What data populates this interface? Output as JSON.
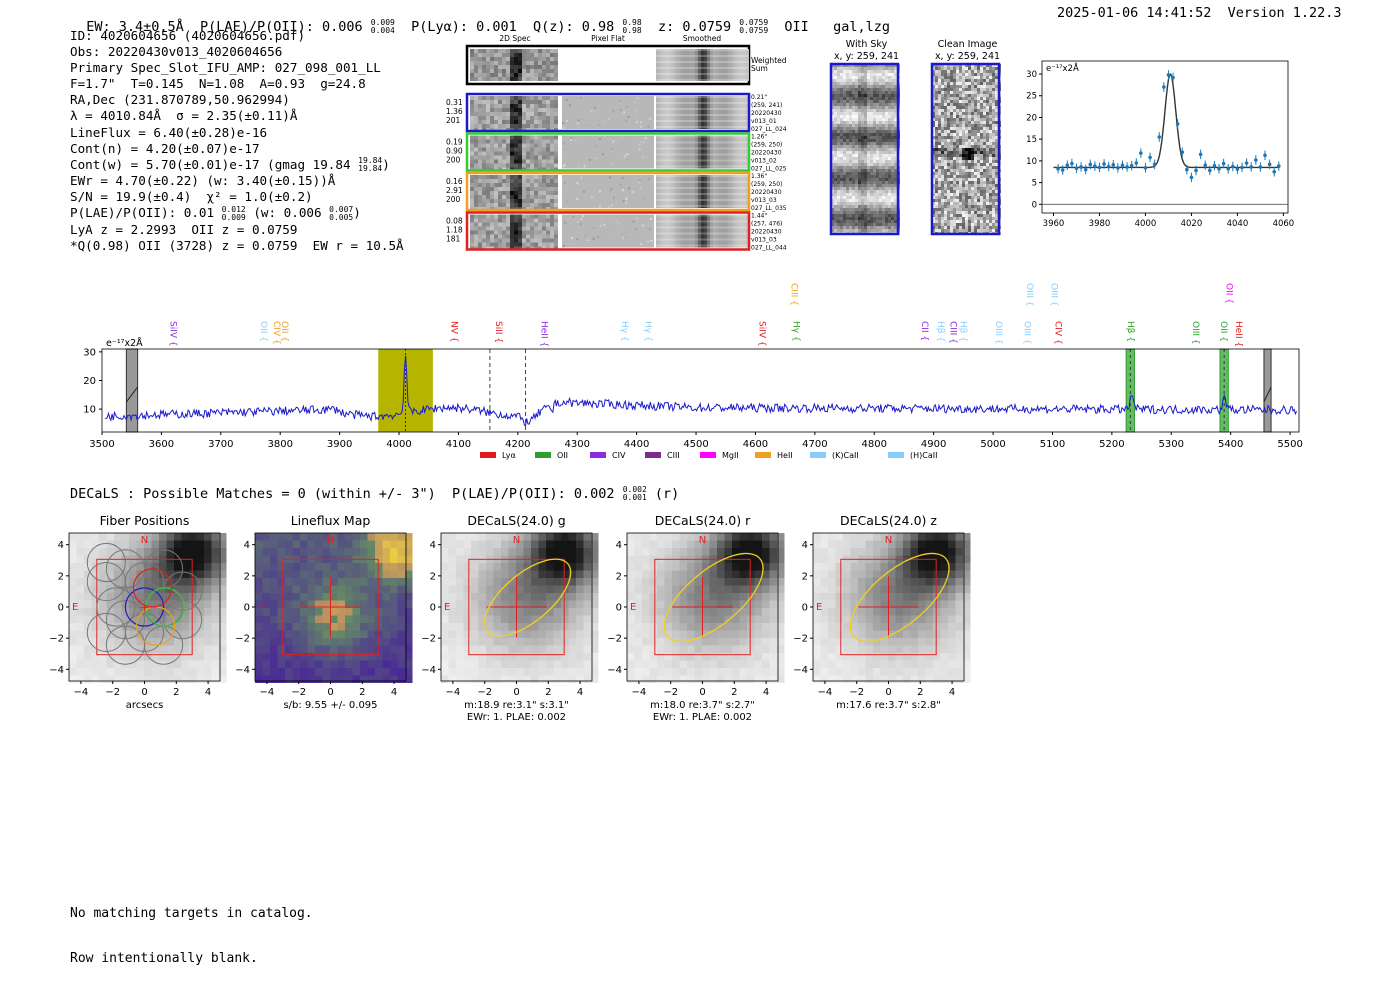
{
  "header": {
    "left": "EW: 3.4±0.5Å  P(LAE)/P(OII): 0.006  P(Lyα): 0.001  Q(z): 0.98  z: 0.0759  OII   gal,lzg",
    "plae_sup": "0.009",
    "plae_sub": "0.004",
    "qz_sup": "0.98",
    "qz_sub": "0.98",
    "z_sup": "0.0759",
    "z_sub": "0.0759",
    "right": "2025-01-06 14:41:52  Version 1.22.3"
  },
  "info_lines": [
    "ID: 4020604656 (4020604656.pdf)",
    "Obs: 20220430v013_4020604656",
    "Primary Spec_Slot_IFU_AMP: 027_098_001_LL",
    "F=1.7\"  T=0.145  N=1.08  A=0.93  g=24.8",
    "RA,Dec (231.870789,50.962994)",
    "λ = 4010.84Å  σ = 2.35(±0.11)Å",
    "LineFlux = 6.40(±0.28)e-16",
    "Cont(n) = 4.20(±0.07)e-17",
    "Cont(w) = 5.70(±0.01)e-17 (gmag 19.84",
    "EWr = 4.70(±0.22) (w: 3.40(±0.15))Å",
    "S/N = 19.9(±0.4)  χ² = 1.0(±0.2)",
    "P(LAE)/P(OII): 0.01  (w: 0.006  )",
    "LyA z = 2.2993  OII z = 0.0759",
    "*Q(0.98) OII (3728) z = 0.0759  EW r = 10.5Å"
  ],
  "info_extra": {
    "gmag_sup": "19.84",
    "gmag_sub": "19.84",
    "p1_sup": "0.012",
    "p1_sub": "0.009",
    "p2_sup": "0.007",
    "p2_sub": "0.005"
  },
  "cutouts": {
    "col_headers": [
      "2D Spec",
      "Pixel Flat",
      "Smoothed"
    ],
    "weighted_label": "Weighted\nSum",
    "rows": [
      {
        "left": "0.31\n1.36\n201",
        "right": "0.21\"\n(259, 241)\n20220430\nv013_01\n027_LL_024",
        "color": "#1a1acc"
      },
      {
        "left": "0.19\n0.90\n200",
        "right": "1.26\"\n(259, 250)\n20220430\nv013_02\n027_LL_025",
        "color": "#33cc33"
      },
      {
        "left": "0.16\n2.91\n200",
        "right": "1.36\"\n(259, 250)\n20220430\nv013_03\n027_LL_035",
        "color": "#f0a020"
      },
      {
        "left": "0.08\n1.18\n181",
        "right": "1.44\"\n(257, 476)\n20220430\nv013_03\n027_LL_044",
        "color": "#e02020"
      }
    ]
  },
  "sky_panels": [
    {
      "title": "With Sky",
      "coords": "x, y: 259, 241"
    },
    {
      "title": "Clean Image",
      "coords": "x, y: 259, 241"
    }
  ],
  "colors": {
    "spectrum": "#1a1acc",
    "fit_points": "#1f77b4",
    "highlight": "#b5b500",
    "line_band": "#2ca02c"
  },
  "chart_data": [
    {
      "type": "scatter",
      "title": "",
      "ylabel_unit": "e⁻¹⁷x2Å",
      "xlim": [
        3955,
        4062
      ],
      "ylim": [
        -2,
        33
      ],
      "xticks": [
        3960,
        3980,
        4000,
        4020,
        4040,
        4060
      ],
      "yticks": [
        0,
        5,
        10,
        15,
        20,
        25,
        30
      ],
      "points_x": [
        3962,
        3964,
        3966,
        3968,
        3970,
        3972,
        3974,
        3976,
        3978,
        3980,
        3982,
        3984,
        3986,
        3988,
        3990,
        3992,
        3994,
        3996,
        3998,
        4000,
        4002,
        4004,
        4006,
        4008,
        4010,
        4012,
        4014,
        4016,
        4018,
        4020,
        4022,
        4024,
        4026,
        4028,
        4030,
        4032,
        4034,
        4036,
        4038,
        4040,
        4042,
        4044,
        4046,
        4048,
        4050,
        4052,
        4054,
        4056,
        4058
      ],
      "points_y": [
        8.2,
        7.9,
        9.0,
        9.4,
        8.3,
        8.6,
        8.0,
        9.2,
        8.8,
        8.5,
        9.3,
        8.7,
        9.1,
        8.4,
        9.0,
        8.6,
        8.9,
        9.5,
        11.8,
        8.4,
        10.8,
        9.2,
        15.5,
        27.0,
        29.8,
        29.2,
        18.5,
        12.0,
        8.0,
        6.2,
        7.8,
        11.5,
        9.0,
        7.8,
        8.9,
        8.2,
        9.4,
        8.2,
        8.7,
        8.1,
        8.5,
        9.5,
        8.6,
        10.2,
        8.6,
        11.3,
        9.2,
        7.5,
        8.8
      ],
      "fit_center": 4010.84,
      "fit_sigma": 2.35,
      "fit_amp": 21.5,
      "fit_base": 8.5
    },
    {
      "type": "line",
      "ylabel_unit": "e⁻¹⁷x2Å",
      "xlim": [
        3500,
        5515
      ],
      "ylim": [
        2,
        31
      ],
      "xticks": [
        3500,
        3600,
        3700,
        3800,
        3900,
        4000,
        4100,
        4200,
        4300,
        4400,
        4500,
        4600,
        4700,
        4800,
        4900,
        5000,
        5100,
        5200,
        5300,
        5400,
        5500
      ],
      "yticks": [
        10,
        20,
        30
      ],
      "highlight_range": [
        3965,
        4057
      ],
      "line_center": 4010.84,
      "dashed_lines": [
        4153,
        4213
      ],
      "green_bands": [
        [
          5224,
          5238
        ],
        [
          5382,
          5396
        ]
      ],
      "gray_bands": [
        [
          3541,
          3560
        ],
        [
          5456,
          5468
        ]
      ],
      "line_labels": [
        {
          "t": "SiIV",
          "x": 3620,
          "c": "#8a2be2",
          "row": 1
        },
        {
          "t": "OII",
          "x": 3773,
          "c": "#87cefa",
          "row": 1
        },
        {
          "t": "CIV",
          "x": 3795,
          "c": "#f0a020",
          "row": 1
        },
        {
          "t": "OII",
          "x": 3808,
          "c": "#f0a020",
          "row": 1
        },
        {
          "t": "NV",
          "x": 4093,
          "c": "#e31a1c",
          "row": 1
        },
        {
          "t": "SiII",
          "x": 4168,
          "c": "#e31a1c",
          "row": 1
        },
        {
          "t": "HeII",
          "x": 4245,
          "c": "#8a2be2",
          "row": 1
        },
        {
          "t": "Hγ",
          "x": 4380,
          "c": "#87cefa",
          "row": 1
        },
        {
          "t": "Hγ",
          "x": 4420,
          "c": "#87cefa",
          "row": 1
        },
        {
          "t": "SiIV",
          "x": 4612,
          "c": "#e31a1c",
          "row": 1
        },
        {
          "t": "CIII",
          "x": 4666,
          "c": "#f0a020",
          "row": 2
        },
        {
          "t": "Hγ",
          "x": 4669,
          "c": "#2ca02c",
          "row": 1
        },
        {
          "t": "CII",
          "x": 4885,
          "c": "#8a2be2",
          "row": 1
        },
        {
          "t": "Hβ",
          "x": 4912,
          "c": "#87cefa",
          "row": 1
        },
        {
          "t": "CIII",
          "x": 4933,
          "c": "#8a2be2",
          "row": 1
        },
        {
          "t": "Hβ",
          "x": 4950,
          "c": "#87cefa",
          "row": 1
        },
        {
          "t": "OIII",
          "x": 5010,
          "c": "#87cefa",
          "row": 1
        },
        {
          "t": "OIII",
          "x": 5058,
          "c": "#87cefa",
          "row": 1
        },
        {
          "t": "OIII",
          "x": 5062,
          "c": "#87cefa",
          "row": 2
        },
        {
          "t": "CIV",
          "x": 5110,
          "c": "#e31a1c",
          "row": 1
        },
        {
          "t": "OIII",
          "x": 5103,
          "c": "#87cefa",
          "row": 2
        },
        {
          "t": "Hβ",
          "x": 5232,
          "c": "#2ca02c",
          "row": 1
        },
        {
          "t": "OIII",
          "x": 5342,
          "c": "#2ca02c",
          "row": 1
        },
        {
          "t": "OII",
          "x": 5389,
          "c": "#2ca02c",
          "row": 1
        },
        {
          "t": "OII",
          "x": 5398,
          "c": "#ff00ff",
          "row": 2
        },
        {
          "t": "HeII",
          "x": 5414,
          "c": "#e31a1c",
          "row": 1
        }
      ],
      "legend": [
        {
          "t": "Lyα",
          "c": "#e31a1c"
        },
        {
          "t": "OII",
          "c": "#2ca02c"
        },
        {
          "t": "CIV",
          "c": "#8a2be2"
        },
        {
          "t": "CIII",
          "c": "#7b2d8e"
        },
        {
          "t": "MgII",
          "c": "#ff00ff"
        },
        {
          "t": "HeII",
          "c": "#f0a020"
        },
        {
          "t": "(K)CaII",
          "c": "#87cefa"
        },
        {
          "t": "(H)CaII",
          "c": "#87cefa"
        }
      ]
    }
  ],
  "decals_line": "DECaLS : Possible Matches = 0 (within +/- 3\")  P(LAE)/P(OII): 0.002  (r)",
  "decals_sup": "0.002",
  "decals_sub": "0.001",
  "panels": [
    {
      "title": "Fiber Positions",
      "label": "arcsecs",
      "compass_n": "N",
      "compass_e": "E"
    },
    {
      "title": "Lineflux Map",
      "label": "s/b: 9.55 +/- 0.095",
      "compass_n": "N",
      "compass_e": "E"
    },
    {
      "title": "DECaLS(24.0) g",
      "label": "m:18.9  re:3.1\"  s:3.1\"\nEWr: 1. PLAE: 0.002",
      "compass_n": "N",
      "compass_e": "E"
    },
    {
      "title": "DECaLS(24.0) r",
      "label": "m:18.0  re:3.7\"  s:2.7\"\nEWr: 1. PLAE: 0.002",
      "compass_n": "N",
      "compass_e": "E"
    },
    {
      "title": "DECaLS(24.0) z",
      "label": "m:17.6  re:3.7\"  s:2.8\"",
      "compass_n": "N",
      "compass_e": "E"
    }
  ],
  "panel_ticks": [
    "-4",
    "-2",
    "0",
    "2",
    "4"
  ],
  "footer": [
    "No matching targets in catalog.",
    "Row intentionally blank."
  ]
}
